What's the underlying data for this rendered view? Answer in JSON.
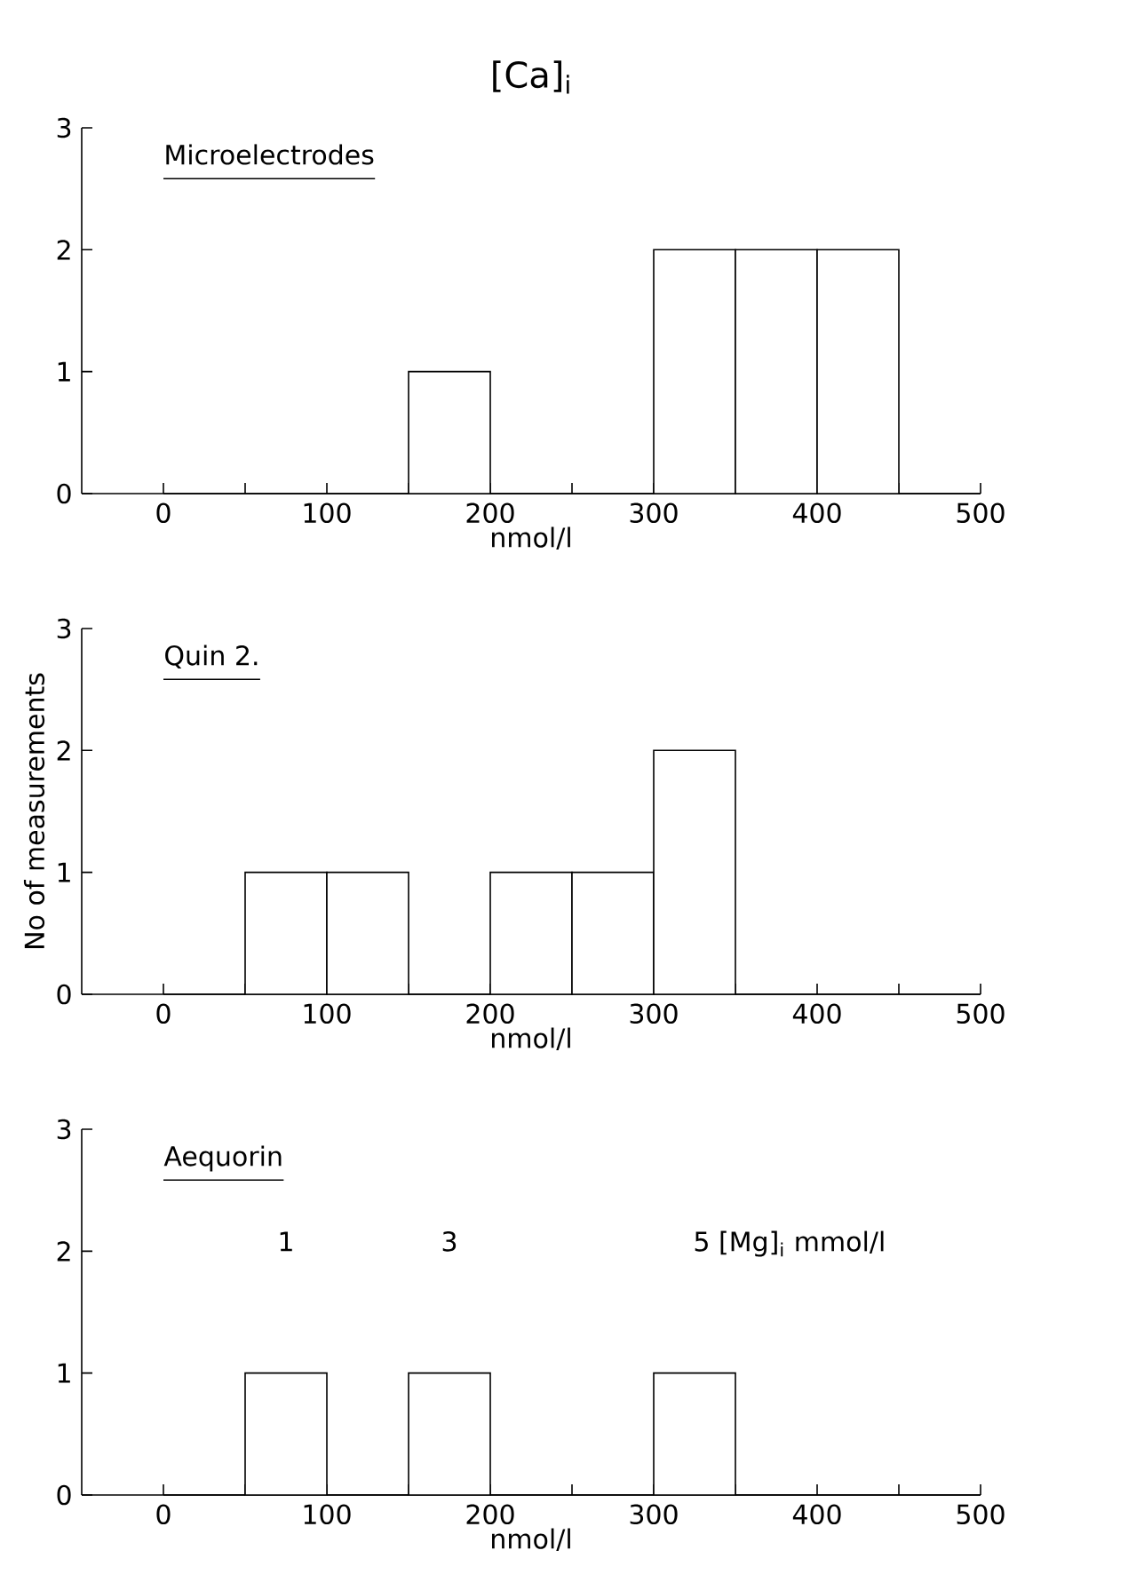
{
  "chart_data": [
    {
      "type": "histogram",
      "title": "[Ca]$_{i}$",
      "xlabel": "nmol/l",
      "bins": [
        0,
        50,
        100,
        150,
        200,
        250,
        300,
        350,
        400,
        450,
        500
      ],
      "values": [
        0,
        0,
        0,
        1,
        0,
        0,
        2,
        2,
        2,
        0
      ],
      "color": "#ffffff",
      "xlim": [
        -50,
        500
      ],
      "ylim": [
        0,
        3
      ],
      "xticks": [
        0,
        {
          "value": 50,
          "label": null
        },
        100,
        {
          "value": 150,
          "label": null
        },
        200,
        {
          "value": 250,
          "label": null
        },
        300,
        {
          "value": 350,
          "label": null
        },
        400,
        {
          "value": 450,
          "label": null
        },
        500
      ],
      "yticks": [
        0,
        1,
        2,
        3
      ],
      "annotations": [
        "Microelectrodes"
      ]
    },
    {
      "type": "histogram",
      "xlabel": "nmol/l",
      "ylabel": "No of measurements",
      "bins": [
        0,
        50,
        100,
        150,
        200,
        250,
        300,
        350,
        400,
        450,
        500
      ],
      "values": [
        0,
        1,
        1,
        0,
        1,
        1,
        2,
        0,
        0,
        0
      ],
      "color": "#ffffff",
      "xlim": [
        -50,
        500
      ],
      "ylim": [
        0,
        3
      ],
      "xticks": [
        0,
        {
          "value": 50,
          "label": null
        },
        100,
        {
          "value": 150,
          "label": null
        },
        200,
        {
          "value": 250,
          "label": null
        },
        300,
        {
          "value": 350,
          "label": null
        },
        400,
        {
          "value": 450,
          "label": null
        },
        500
      ],
      "yticks": [
        0,
        1,
        2,
        3
      ],
      "annotations": [
        "Quin 2."
      ]
    },
    {
      "type": "histogram",
      "xlabel": "nmol/l",
      "bins": [
        0,
        50,
        100,
        150,
        200,
        250,
        300,
        350,
        400,
        450,
        500
      ],
      "values": [
        0,
        1,
        0,
        1,
        0,
        0,
        1,
        0,
        0,
        0
      ],
      "color": "#ffffff",
      "xlim": [
        -50,
        500
      ],
      "ylim": [
        0,
        3
      ],
      "xticks": [
        0,
        {
          "value": 50,
          "label": null
        },
        100,
        {
          "value": 150,
          "label": null
        },
        200,
        {
          "value": 250,
          "label": null
        },
        300,
        {
          "value": 350,
          "label": null
        },
        400,
        {
          "value": 450,
          "label": null
        },
        500
      ],
      "yticks": [
        0,
        1,
        2,
        3
      ],
      "annotations": [
        "Aequorin",
        "1",
        "3",
        "5 [Mg]$_{i}$ mmol/l"
      ]
    }
  ]
}
